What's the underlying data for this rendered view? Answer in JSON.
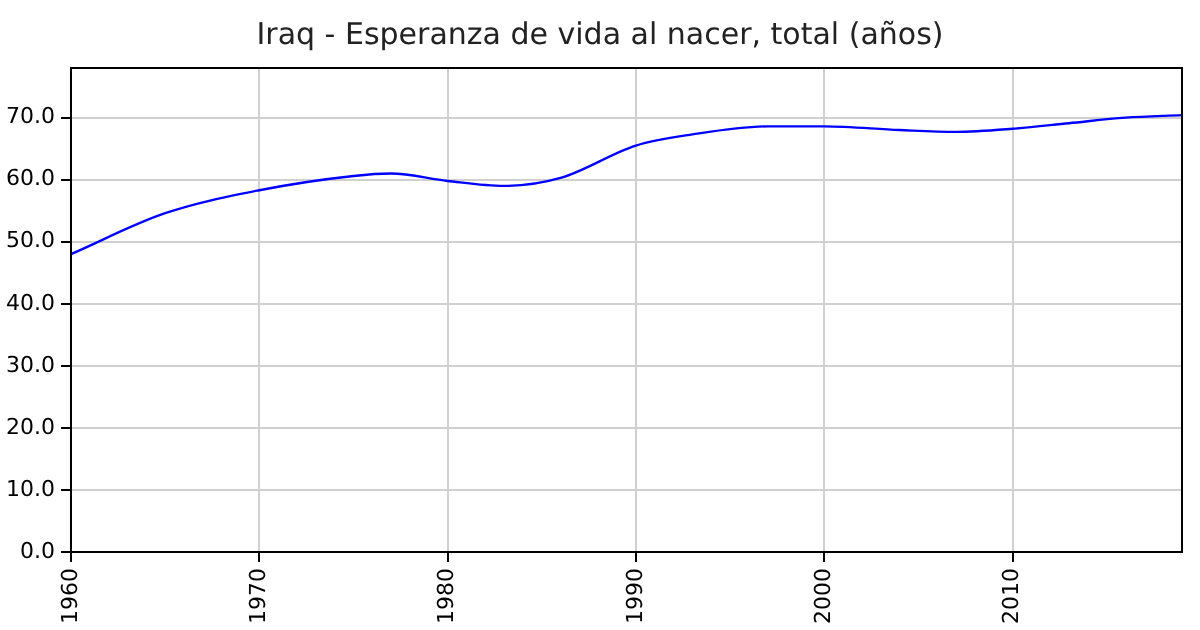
{
  "chart_data": {
    "type": "line",
    "title": "Iraq - Esperanza de vida al nacer, total (años)",
    "x": [
      1960,
      1965,
      1970,
      1975,
      1977,
      1980,
      1983,
      1986,
      1990,
      1993,
      1997,
      2000,
      2004,
      2007,
      2010,
      2013,
      2016,
      2019
    ],
    "series": [
      {
        "color": "#0000ff",
        "values": [
          48.0,
          54.6,
          58.3,
          60.6,
          61.0,
          59.8,
          59.0,
          60.3,
          65.5,
          67.3,
          68.6,
          68.6,
          68.0,
          67.7,
          68.2,
          69.1,
          70.0,
          70.4
        ]
      }
    ],
    "xlim": [
      1960,
      2019
    ],
    "xticks": [
      1960,
      1970,
      1980,
      1990,
      2000,
      2010
    ],
    "ylim": [
      0,
      78
    ],
    "yticks": [
      {
        "value": 0,
        "label": "0.0"
      },
      {
        "value": 10,
        "label": "10.0"
      },
      {
        "value": 20,
        "label": "20.0"
      },
      {
        "value": 30,
        "label": "30.0"
      },
      {
        "value": 40,
        "label": "40.0"
      },
      {
        "value": 50,
        "label": "50.0"
      },
      {
        "value": 60,
        "label": "60.0"
      },
      {
        "value": 70,
        "label": "70.0"
      }
    ],
    "grid": true,
    "legend": false,
    "marker": "none",
    "line_style": "solid"
  }
}
